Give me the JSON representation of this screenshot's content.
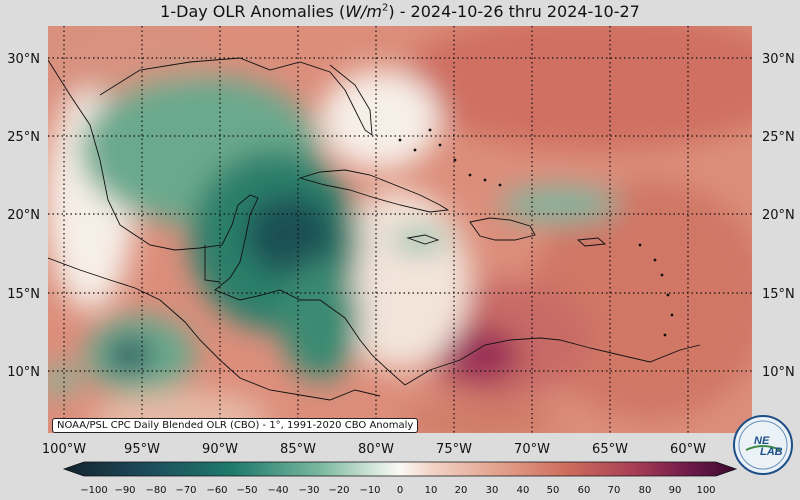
{
  "title_prefix": "1-Day OLR Anomalies (",
  "title_unit": "W/m",
  "title_exp": "2",
  "title_suffix": ") - 2024-10-26 thru 2024-10-27",
  "lon_labels": [
    "100°W",
    "95°W",
    "90°W",
    "85°W",
    "80°W",
    "75°W",
    "70°W",
    "65°W",
    "60°W"
  ],
  "lat_labels": [
    "30°N",
    "25°N",
    "20°N",
    "15°N",
    "10°N"
  ],
  "colorbar_ticks": [
    "−100",
    "−90",
    "−80",
    "−70",
    "−60",
    "−50",
    "−40",
    "−30",
    "−20",
    "−10",
    "0",
    "10",
    "20",
    "30",
    "40",
    "50",
    "60",
    "70",
    "80",
    "90",
    "100"
  ],
  "credit": "NOAA/PSL CPC Daily Blended OLR (CBO) - 1°, 1991-2020 CBO Anomaly",
  "logo": {
    "line1": "NE",
    "line2": "LAB"
  },
  "colors": {
    "negative": "#1a6b5a",
    "positive": "#c0504d",
    "neutral": "#f7f4f0"
  }
}
